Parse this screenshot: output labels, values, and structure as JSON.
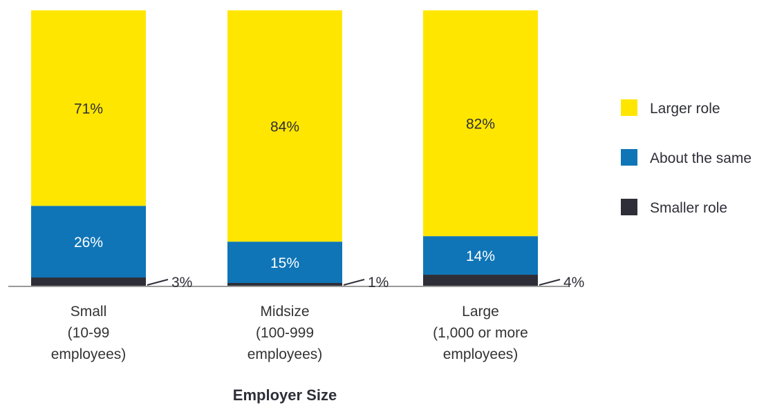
{
  "chart_data": {
    "type": "bar",
    "stacked": true,
    "categories": [
      [
        "Small",
        "(10-99",
        "employees)"
      ],
      [
        "Midsize",
        "(100-999",
        "employees)"
      ],
      [
        "Large",
        "(1,000 or more",
        "employees)"
      ]
    ],
    "series": [
      {
        "name": "Smaller role",
        "values": [
          3,
          1,
          4
        ],
        "labels": [
          "3%",
          "1%",
          "4%"
        ],
        "color": "#2e2e38",
        "label_color": "#2e2e38"
      },
      {
        "name": "About the same",
        "values": [
          26,
          15,
          14
        ],
        "labels": [
          "26%",
          "15%",
          "14%"
        ],
        "color": "#0f75b7",
        "label_color": "#ffffff"
      },
      {
        "name": "Larger role",
        "values": [
          71,
          84,
          82
        ],
        "labels": [
          "71%",
          "84%",
          "82%"
        ],
        "color": "#ffe600",
        "label_color": "#2e2e38"
      }
    ],
    "legend_order": [
      "Larger role",
      "About the same",
      "Smaller role"
    ],
    "legend_position": "right",
    "xlabel": "Employer Size",
    "ylabel": "",
    "ylim": [
      0,
      100
    ],
    "grid": false,
    "baseline_color": "#999999"
  }
}
